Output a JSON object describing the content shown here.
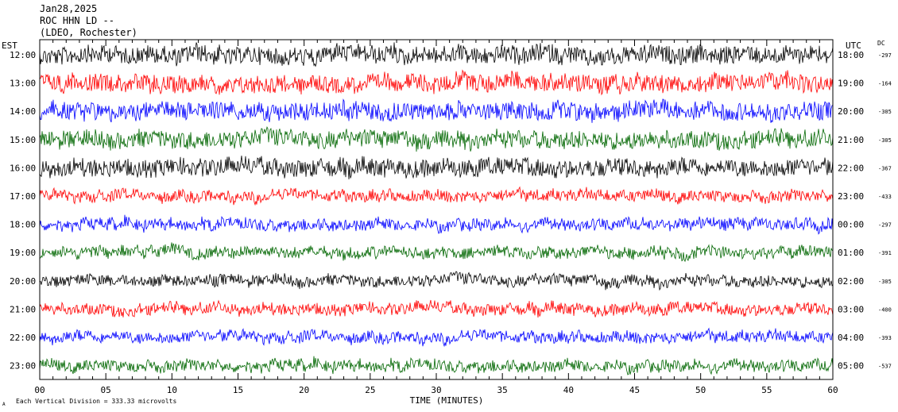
{
  "header": {
    "date": "Jan28,2025",
    "station": "ROC HHN LD --",
    "network": "(LDEO, Rochester)"
  },
  "labels": {
    "left_zone": "EST",
    "right_zone": "UTC",
    "dc_header": "DC",
    "x_axis_title": "TIME (MINUTES)",
    "scale_note": "Each Vertical Division =  333.33 microvolts",
    "corner_mark": "A"
  },
  "colors": {
    "trace_cycle": [
      "#000000",
      "#ff0000",
      "#0000ff",
      "#006600"
    ],
    "background": "#ffffff",
    "axis": "#000000"
  },
  "chart_data": {
    "type": "line",
    "title": "Jan28,2025",
    "subtitle": "ROC HHN LD -- (LDEO, Rochester)",
    "xlabel": "TIME (MINUTES)",
    "xlim": [
      0,
      60
    ],
    "x_ticks": [
      "00",
      "05",
      "10",
      "15",
      "20",
      "25",
      "30",
      "35",
      "40",
      "45",
      "50",
      "55",
      "60"
    ],
    "grid": false,
    "rows": [
      {
        "est": "12:00",
        "utc": "18:00",
        "dc": "-297"
      },
      {
        "est": "13:00",
        "utc": "19:00",
        "dc": "-164"
      },
      {
        "est": "14:00",
        "utc": "20:00",
        "dc": "-305"
      },
      {
        "est": "15:00",
        "utc": "21:00",
        "dc": "-305"
      },
      {
        "est": "16:00",
        "utc": "22:00",
        "dc": "-367"
      },
      {
        "est": "17:00",
        "utc": "23:00",
        "dc": "-433"
      },
      {
        "est": "18:00",
        "utc": "00:00",
        "dc": "-297"
      },
      {
        "est": "19:00",
        "utc": "01:00",
        "dc": "-391"
      },
      {
        "est": "20:00",
        "utc": "02:00",
        "dc": "-305"
      },
      {
        "est": "21:00",
        "utc": "03:00",
        "dc": "-400"
      },
      {
        "est": "22:00",
        "utc": "04:00",
        "dc": "-393"
      },
      {
        "est": "23:00",
        "utc": "05:00",
        "dc": "-537"
      }
    ]
  }
}
